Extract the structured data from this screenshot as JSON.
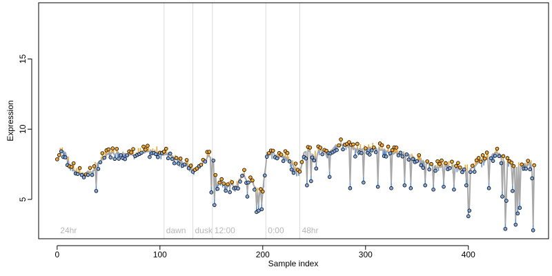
{
  "chart_data": {
    "type": "scatter",
    "title": "",
    "xlabel": "Sample index",
    "ylabel": "Expression",
    "xlim": [
      -18,
      478
    ],
    "ylim": [
      2.2,
      19.0
    ],
    "grid": false,
    "legend": "none",
    "x_ticks": [
      0,
      100,
      200,
      300,
      400
    ],
    "y_ticks": [
      5,
      10,
      15
    ],
    "phase_markers": [
      {
        "x": 104,
        "label": "dawn"
      },
      {
        "x": 132,
        "label": "dusk"
      },
      {
        "x": 151,
        "label": "12:00"
      },
      {
        "x": 203,
        "label": "0:00"
      },
      {
        "x": 236,
        "label": "48hr"
      }
    ],
    "corner_labels": [
      {
        "x": 3,
        "label": "24hr"
      }
    ],
    "colors": {
      "up_segment": "#f5a623",
      "down_segment": "#5a8fde",
      "fit_line": "#a8a8a8",
      "point_fill_up": "#f5a623",
      "point_fill_down": "#7fa8e0",
      "point_edge": "#000000",
      "phase_line": "#dcdcdc"
    },
    "anchors": [
      [
        0,
        7.8
      ],
      [
        4,
        8.5
      ],
      [
        8,
        8.3
      ],
      [
        12,
        7.4
      ],
      [
        18,
        7.0
      ],
      [
        25,
        6.8
      ],
      [
        35,
        7.0
      ],
      [
        40,
        7.6
      ],
      [
        50,
        8.3
      ],
      [
        60,
        8.3
      ],
      [
        70,
        8.2
      ],
      [
        80,
        8.3
      ],
      [
        90,
        8.4
      ],
      [
        100,
        8.3
      ],
      [
        110,
        8.2
      ],
      [
        120,
        7.7
      ],
      [
        128,
        7.3
      ],
      [
        134,
        7.0
      ],
      [
        140,
        7.4
      ],
      [
        147,
        8.1
      ],
      [
        152,
        7.9
      ],
      [
        155,
        6.0
      ],
      [
        160,
        6.3
      ],
      [
        165,
        5.9
      ],
      [
        170,
        6.0
      ],
      [
        175,
        5.9
      ],
      [
        180,
        6.9
      ],
      [
        185,
        6.4
      ],
      [
        190,
        6.2
      ],
      [
        195,
        5.5
      ],
      [
        200,
        5.6
      ],
      [
        204,
        8.2
      ],
      [
        208,
        8.3
      ],
      [
        214,
        8.0
      ],
      [
        220,
        8.1
      ],
      [
        226,
        7.8
      ],
      [
        232,
        7.1
      ],
      [
        236,
        7.0
      ],
      [
        240,
        8.2
      ],
      [
        244,
        8.5
      ],
      [
        250,
        8.0
      ],
      [
        256,
        8.5
      ],
      [
        262,
        8.2
      ],
      [
        270,
        8.8
      ],
      [
        280,
        8.9
      ],
      [
        290,
        8.5
      ],
      [
        300,
        8.6
      ],
      [
        310,
        8.7
      ],
      [
        320,
        8.4
      ],
      [
        330,
        8.3
      ],
      [
        340,
        8.2
      ],
      [
        350,
        7.8
      ],
      [
        360,
        7.6
      ],
      [
        370,
        7.3
      ],
      [
        380,
        7.4
      ],
      [
        390,
        7.2
      ],
      [
        400,
        7.1
      ],
      [
        410,
        7.6
      ],
      [
        420,
        8.0
      ],
      [
        428,
        8.3
      ],
      [
        436,
        7.7
      ],
      [
        444,
        7.3
      ],
      [
        452,
        7.4
      ],
      [
        460,
        7.5
      ],
      [
        464,
        7.2
      ]
    ],
    "dips": [
      [
        38,
        5.6
      ],
      [
        150,
        5.5
      ],
      [
        153,
        4.6
      ],
      [
        185,
        5.2
      ],
      [
        194,
        4.1
      ],
      [
        196,
        4.2
      ],
      [
        199,
        4.3
      ],
      [
        243,
        6.0
      ],
      [
        247,
        6.3
      ],
      [
        252,
        7.2
      ],
      [
        265,
        6.6
      ],
      [
        285,
        5.8
      ],
      [
        298,
        6.2
      ],
      [
        312,
        5.9
      ],
      [
        325,
        5.8
      ],
      [
        338,
        6.0
      ],
      [
        344,
        5.8
      ],
      [
        358,
        6.0
      ],
      [
        366,
        5.7
      ],
      [
        376,
        5.9
      ],
      [
        386,
        5.7
      ],
      [
        398,
        6.0
      ],
      [
        400,
        3.8
      ],
      [
        401,
        4.2
      ],
      [
        420,
        5.8
      ],
      [
        433,
        5.2
      ],
      [
        436,
        2.9
      ],
      [
        437,
        4.9
      ],
      [
        443,
        5.6
      ],
      [
        446,
        3.2
      ],
      [
        448,
        4.0
      ],
      [
        450,
        4.4
      ],
      [
        462,
        6.5
      ],
      [
        463,
        2.8
      ]
    ]
  }
}
